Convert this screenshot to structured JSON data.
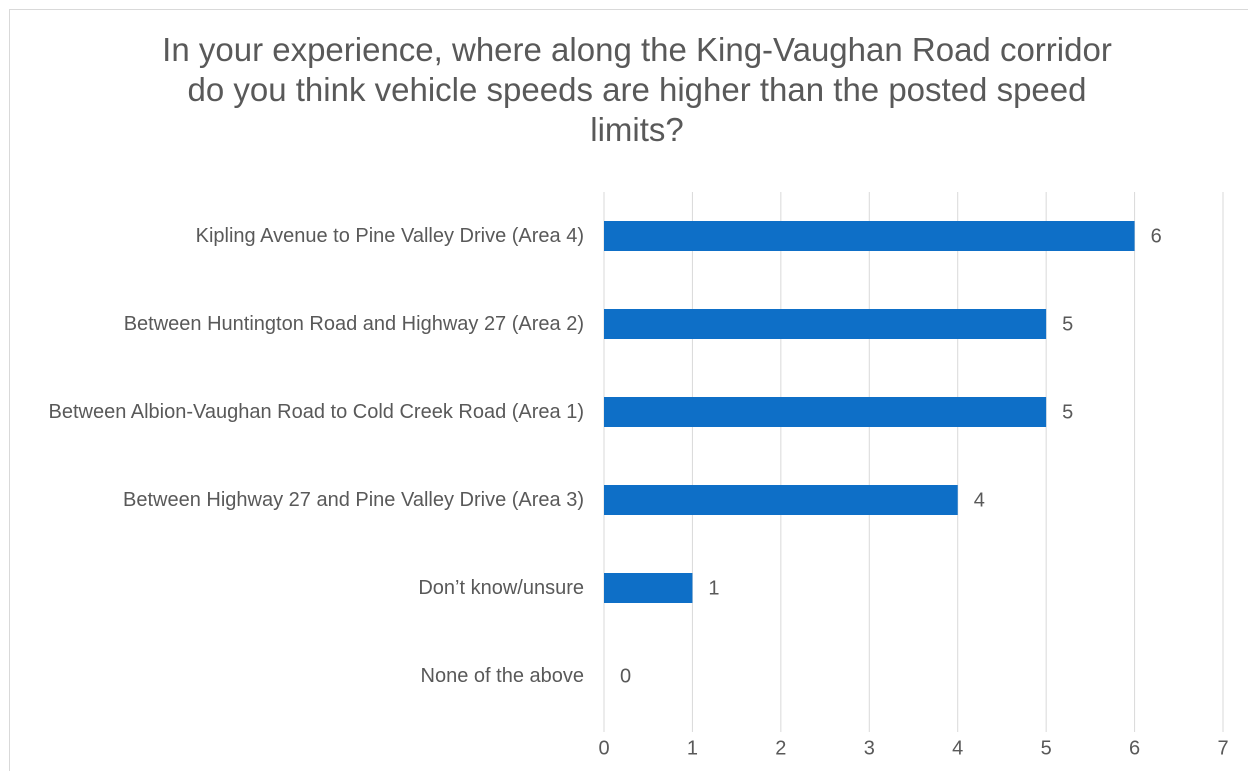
{
  "chart_data": {
    "type": "bar",
    "orientation": "horizontal",
    "title": "In your experience, where along the King-Vaughan Road corridor do you think vehicle speeds are higher than the posted speed limits?",
    "categories": [
      "Kipling Avenue to Pine Valley Drive (Area 4)",
      "Between Huntington Road and Highway 27 (Area 2)",
      "Between Albion-Vaughan Road to Cold Creek Road (Area 1)",
      "Between Highway 27 and Pine Valley Drive (Area 3)",
      "Don’t know/unsure",
      "None of the above"
    ],
    "values": [
      6,
      5,
      5,
      4,
      1,
      0
    ],
    "color": "#0e6fc7",
    "xlim": [
      0,
      7
    ],
    "xticks": [
      0,
      1,
      2,
      3,
      4,
      5,
      6,
      7
    ],
    "grid": true
  }
}
